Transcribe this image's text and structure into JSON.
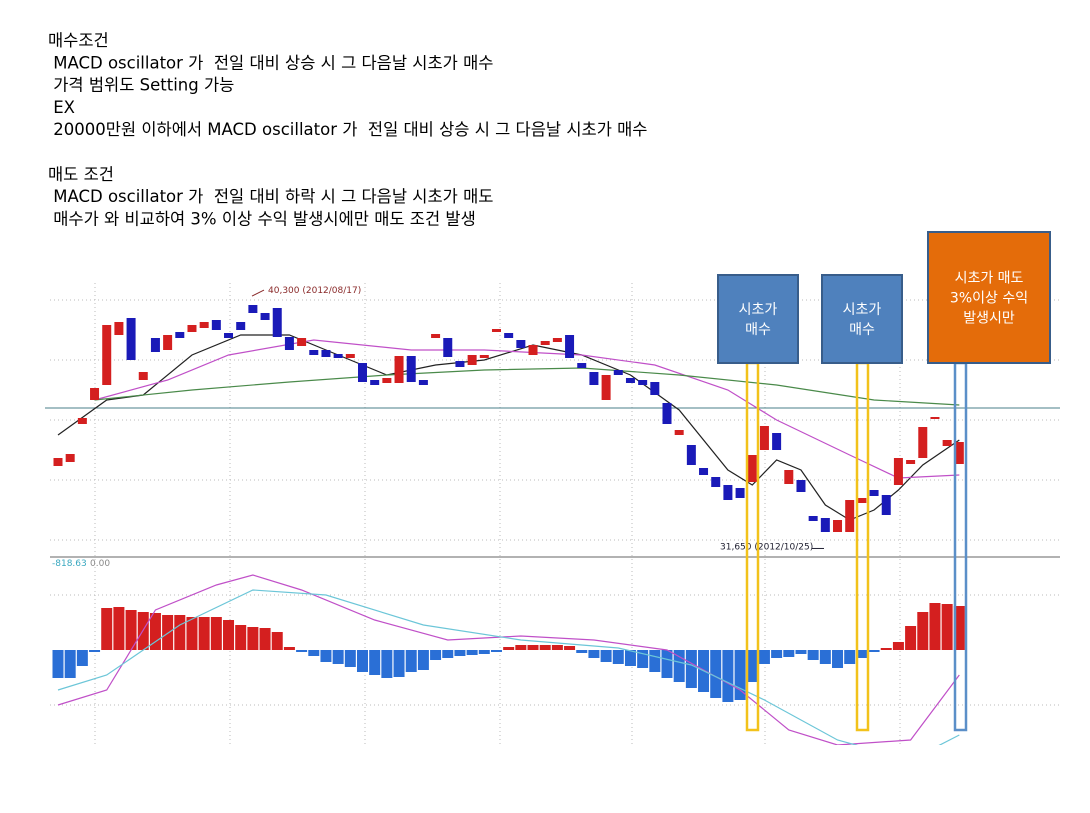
{
  "text": {
    "buy_title": "매수조건",
    "buy_lines": [
      " MACD oscillator 가  전일 대비 상승 시 그 다음날 시초가 매수",
      " 가격 범위도 Setting 가능",
      " EX",
      " 20000만원 이하에서 MACD oscillator 가  전일 대비 상승 시 그 다음날 시초가 매수"
    ],
    "sell_title": "매도 조건",
    "sell_lines": [
      " MACD oscillator 가  전일 대비 하락 시 그 다음날 시초가 매도",
      " 매수가 와 비교하여 3% 이상 수익 발생시에만 매도 조건 발생"
    ]
  },
  "chart_data": {
    "type": "candlestick",
    "up_color": "#d41f1f",
    "down_color": "#1a1ab8",
    "ylim": [
      31292,
      40540
    ],
    "open": [
      34318,
      34454,
      35746,
      36562,
      37072,
      38772,
      39350,
      37242,
      38670,
      38262,
      38874,
      38874,
      39010,
      39282,
      38840,
      39214,
      39792,
      39520,
      39690,
      38704,
      38398,
      38262,
      38262,
      38126,
      37990,
      37820,
      37242,
      37140,
      37140,
      38058,
      37242,
      38670,
      38670,
      37888,
      37752,
      37990,
      38874,
      38840,
      38602,
      38092,
      38432,
      38534,
      38772,
      37820,
      37514,
      36562,
      37582,
      37310,
      37242,
      37174,
      36460,
      35372,
      35032,
      34250,
      33944,
      33672,
      33570,
      33774,
      34862,
      35440,
      33706,
      33842,
      32618,
      32550,
      32074,
      32074,
      33060,
      33502,
      33332,
      33672,
      34386,
      34590,
      35916,
      34998,
      34386
    ],
    "close": [
      34590,
      34726,
      35950,
      36970,
      39112,
      39214,
      37922,
      37514,
      38194,
      38772,
      38670,
      39112,
      39214,
      38942,
      38670,
      38942,
      39520,
      39282,
      38704,
      38262,
      38670,
      38092,
      38024,
      37990,
      38126,
      37174,
      37072,
      37310,
      38058,
      37174,
      37072,
      38806,
      38024,
      37684,
      38092,
      38092,
      38976,
      38670,
      38330,
      38432,
      38568,
      38670,
      37990,
      37650,
      37072,
      37412,
      37412,
      37140,
      37072,
      36732,
      35746,
      35542,
      34352,
      34012,
      33604,
      33162,
      33230,
      34692,
      35678,
      34862,
      34182,
      33434,
      32448,
      32074,
      32482,
      33162,
      33230,
      33298,
      32652,
      34590,
      34522,
      35644,
      35984,
      35202,
      35134
    ],
    "lines": [
      {
        "color": "#222222",
        "x": [
          0,
          4,
          7,
          11,
          15,
          19,
          23,
          27,
          31,
          35,
          39,
          43,
          47,
          51,
          55,
          57,
          59,
          61,
          63,
          65,
          67,
          69,
          71,
          74
        ],
        "values": [
          35372,
          36562,
          36732,
          38092,
          38772,
          38772,
          38092,
          37412,
          37752,
          37922,
          38432,
          38092,
          37412,
          36222,
          34182,
          33672,
          34522,
          34182,
          32992,
          32482,
          32822,
          33502,
          34352,
          35202
        ]
      },
      {
        "color": "#c050c8",
        "x": [
          3,
          9,
          14,
          21,
          29,
          35,
          43,
          49,
          55,
          59,
          65,
          69,
          74
        ],
        "values": [
          36562,
          37242,
          38092,
          38602,
          38262,
          38262,
          38092,
          37752,
          36902,
          35882,
          34692,
          33910,
          34012
        ]
      },
      {
        "color": "#4a8a4a",
        "x": [
          3,
          11,
          19,
          27,
          35,
          43,
          51,
          59,
          67,
          74
        ],
        "values": [
          36562,
          36902,
          37174,
          37412,
          37582,
          37650,
          37412,
          37072,
          36562,
          36392
        ]
      }
    ],
    "ref_line": 36290,
    "high_label": {
      "value": 40300,
      "label": "40,300 (2012/08/17)"
    },
    "low_label": {
      "value": 31650,
      "label": "31,650 (2012/10/25)"
    },
    "macd_labels": [
      "-818.63",
      "0.00"
    ],
    "macd_ylim": [
      -950,
      920
    ],
    "macd_up_color": "#d41f1f",
    "macd_down_color": "#2a6fd6",
    "macd_hist": [
      -280,
      -280,
      -160,
      -20,
      420,
      430,
      400,
      380,
      370,
      350,
      350,
      330,
      330,
      330,
      300,
      250,
      230,
      220,
      180,
      30,
      -20,
      -60,
      -120,
      -140,
      -170,
      -220,
      -250,
      -280,
      -270,
      -220,
      -200,
      -100,
      -80,
      -60,
      -50,
      -40,
      -20,
      30,
      50,
      50,
      50,
      50,
      40,
      -30,
      -80,
      -120,
      -140,
      -160,
      -180,
      -220,
      -280,
      -320,
      -380,
      -420,
      -480,
      -520,
      -500,
      -320,
      -140,
      -80,
      -70,
      -40,
      -100,
      -140,
      -180,
      -140,
      -80,
      -20,
      20,
      80,
      240,
      380,
      470,
      460,
      440
    ],
    "macd_lines": [
      {
        "color": "#c050c8",
        "x": [
          0,
          4,
          8,
          13,
          16,
          20,
          26,
          32,
          38,
          44,
          50,
          56,
          60,
          64,
          70,
          74
        ],
        "values": [
          -550,
          -400,
          400,
          650,
          750,
          600,
          300,
          100,
          140,
          100,
          0,
          -400,
          -800,
          -950,
          -900,
          -250
        ]
      },
      {
        "color": "#6cc6d8",
        "x": [
          0,
          4,
          10,
          16,
          22,
          30,
          38,
          46,
          52,
          58,
          64,
          70,
          74
        ],
        "values": [
          -400,
          -250,
          250,
          600,
          550,
          250,
          100,
          20,
          -150,
          -500,
          -900,
          -1100,
          -850
        ]
      }
    ]
  },
  "callouts": [
    {
      "lines": [
        "시초가",
        "매수"
      ]
    },
    {
      "lines": [
        "시초가",
        "매수"
      ]
    },
    {
      "lines": [
        "시초가 매도",
        "3%이상 수익",
        "발생시만"
      ]
    }
  ]
}
